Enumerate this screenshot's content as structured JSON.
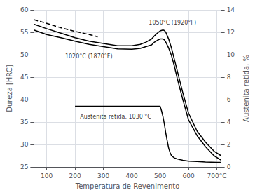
{
  "chart_data": {
    "type": "line",
    "xlabel": "Temperatura de Revenimento",
    "ylabel": "Dureza [HRC]",
    "y2label": "Austenita retida, %",
    "xlim": [
      55,
      715
    ],
    "xticks": [
      100,
      200,
      300,
      400,
      500,
      600,
      {
        "value": 700,
        "label": "700°C"
      }
    ],
    "ylim": [
      25,
      60
    ],
    "yticks": [
      25,
      30,
      35,
      40,
      45,
      50,
      55,
      60
    ],
    "y2lim": [
      0,
      14
    ],
    "y2ticks": [
      0,
      2,
      4,
      6,
      8,
      10,
      12,
      14
    ],
    "grid": true,
    "series": [
      {
        "color": "#000000",
        "line_style": "dashed",
        "x": [
          55,
          100,
          150,
          200,
          250,
          280
        ],
        "values": [
          57.8,
          57.0,
          56.0,
          55.2,
          54.5,
          54.0
        ]
      },
      {
        "color": "#000000",
        "line_style": "solid",
        "x": [
          55,
          100,
          150,
          200,
          250,
          300,
          350,
          400,
          430,
          450,
          470,
          480,
          490,
          500,
          510,
          515,
          520,
          530,
          540,
          550,
          560,
          580,
          600,
          630,
          660,
          690,
          715
        ],
        "values": [
          56.8,
          55.8,
          54.8,
          53.8,
          53.0,
          52.5,
          52.0,
          52.0,
          52.3,
          52.8,
          53.5,
          54.2,
          54.8,
          55.3,
          55.5,
          55.4,
          55.0,
          53.5,
          51.5,
          49.0,
          46.5,
          41.5,
          37.0,
          33.0,
          30.5,
          28.5,
          27.5
        ]
      },
      {
        "color": "#000000",
        "line_style": "solid",
        "x": [
          55,
          100,
          150,
          200,
          250,
          300,
          350,
          400,
          430,
          450,
          470,
          480,
          490,
          500,
          510,
          515,
          520,
          530,
          540,
          550,
          560,
          580,
          600,
          630,
          660,
          690,
          715
        ],
        "values": [
          55.5,
          54.5,
          53.8,
          53.0,
          52.3,
          51.8,
          51.3,
          51.2,
          51.4,
          51.8,
          52.2,
          52.8,
          53.2,
          53.5,
          53.5,
          53.3,
          52.8,
          51.5,
          49.8,
          47.5,
          44.8,
          40.0,
          35.5,
          32.0,
          29.5,
          27.5,
          26.5
        ]
      },
      {
        "color": "#000000",
        "line_style": "solid",
        "x": [
          200,
          250,
          300,
          350,
          400,
          450,
          480,
          500,
          505,
          510,
          515,
          520,
          525,
          530,
          535,
          540,
          550,
          560,
          580,
          600,
          630,
          660,
          700,
          715
        ],
        "values": [
          38.5,
          38.5,
          38.5,
          38.5,
          38.5,
          38.5,
          38.5,
          38.5,
          37.5,
          36.2,
          34.5,
          32.5,
          30.8,
          29.2,
          28.2,
          27.5,
          27.0,
          26.8,
          26.5,
          26.3,
          26.2,
          26.1,
          26.0,
          26.0
        ]
      }
    ],
    "annotations": [
      {
        "text": "1050°C (1920°F)",
        "x": 460,
        "y": 56.5
      },
      {
        "text": "1020°C (1870°F)",
        "x": 165,
        "y": 49.0
      },
      {
        "text": "Austenita retida. 1030 °C",
        "x": 218,
        "y": 35.5
      }
    ]
  }
}
